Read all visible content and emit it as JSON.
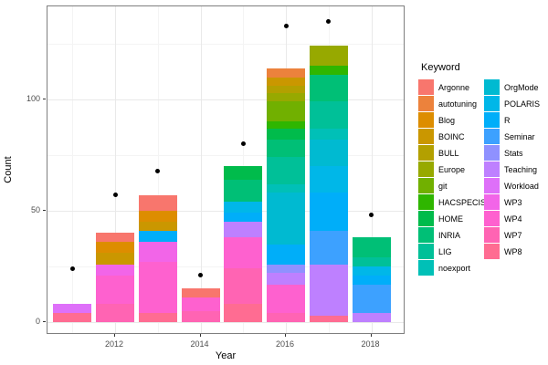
{
  "axes": {
    "x_label": "Year",
    "y_label": "Count",
    "x_ticks": [
      {
        "label": "2012",
        "value": 2012
      },
      {
        "label": "2014",
        "value": 2014
      },
      {
        "label": "2016",
        "value": 2016
      },
      {
        "label": "2018",
        "value": 2018
      }
    ],
    "y_ticks": [
      {
        "label": "0",
        "value": 0
      },
      {
        "label": "50",
        "value": 50
      },
      {
        "label": "100",
        "value": 100
      }
    ]
  },
  "legend": {
    "title": "Keyword",
    "items": [
      {
        "label": "Argonne",
        "color": "#F8766D"
      },
      {
        "label": "autotuning",
        "color": "#EC823C"
      },
      {
        "label": "Blog",
        "color": "#DD8D00"
      },
      {
        "label": "BOINC",
        "color": "#CA9700"
      },
      {
        "label": "BULL",
        "color": "#B3A000"
      },
      {
        "label": "Europe",
        "color": "#97A900"
      },
      {
        "label": "git",
        "color": "#71B000"
      },
      {
        "label": "HACSPECIS",
        "color": "#2FB600"
      },
      {
        "label": "HOME",
        "color": "#00BB4B"
      },
      {
        "label": "INRIA",
        "color": "#00BF76"
      },
      {
        "label": "LIG",
        "color": "#00C098"
      },
      {
        "label": "noexport",
        "color": "#00C0B7"
      },
      {
        "label": "OrgMode",
        "color": "#00BAD1"
      },
      {
        "label": "POLARIS",
        "color": "#00B7E8"
      },
      {
        "label": "R",
        "color": "#00AEF9"
      },
      {
        "label": "Seminar",
        "color": "#3DA1FF"
      },
      {
        "label": "Stats",
        "color": "#8F91FF"
      },
      {
        "label": "Teaching",
        "color": "#BE80FF"
      },
      {
        "label": "Workload",
        "color": "#DE70F9"
      },
      {
        "label": "WP3",
        "color": "#F265E8"
      },
      {
        "label": "WP4",
        "color": "#FE61CF"
      },
      {
        "label": "WP7",
        "color": "#FF64B3"
      },
      {
        "label": "WP8",
        "color": "#FF6C92"
      }
    ],
    "column_split": 12
  },
  "chart_data": {
    "type": "bar",
    "subtype": "stacked-bars-with-points",
    "title": "",
    "xlabel": "Year",
    "ylabel": "Count",
    "x_range": [
      2010.4,
      2018.6
    ],
    "ylim": [
      0,
      140
    ],
    "grid": {
      "y_major": [
        0,
        50,
        100
      ],
      "y_minor": [
        25,
        75,
        125
      ],
      "x_major": [
        2012,
        2014,
        2016,
        2018
      ],
      "x_minor": [
        2011,
        2013,
        2015,
        2017
      ]
    },
    "bars": [
      {
        "year": 2011,
        "total": 8,
        "segments": [
          {
            "keyword": "WP8",
            "value": 4
          },
          {
            "keyword": "Workload",
            "value": 4
          }
        ]
      },
      {
        "year": 2012,
        "total": 40,
        "segments": [
          {
            "keyword": "WP7",
            "value": 8
          },
          {
            "keyword": "WP4",
            "value": 13
          },
          {
            "keyword": "WP3",
            "value": 5
          },
          {
            "keyword": "BOINC",
            "value": 5
          },
          {
            "keyword": "Blog",
            "value": 5
          },
          {
            "keyword": "Argonne",
            "value": 4
          }
        ]
      },
      {
        "year": 2013,
        "total": 57,
        "segments": [
          {
            "keyword": "WP8",
            "value": 4
          },
          {
            "keyword": "WP4",
            "value": 23
          },
          {
            "keyword": "WP3",
            "value": 9
          },
          {
            "keyword": "R",
            "value": 5
          },
          {
            "keyword": "BOINC",
            "value": 4
          },
          {
            "keyword": "Blog",
            "value": 5
          },
          {
            "keyword": "Argonne",
            "value": 7
          }
        ]
      },
      {
        "year": 2014,
        "total": 15,
        "segments": [
          {
            "keyword": "WP7",
            "value": 5
          },
          {
            "keyword": "WP4",
            "value": 6
          },
          {
            "keyword": "Argonne",
            "value": 4
          }
        ]
      },
      {
        "year": 2015,
        "total": 70,
        "segments": [
          {
            "keyword": "WP8",
            "value": 8
          },
          {
            "keyword": "WP7",
            "value": 16
          },
          {
            "keyword": "WP4",
            "value": 14
          },
          {
            "keyword": "Teaching",
            "value": 7
          },
          {
            "keyword": "R",
            "value": 4
          },
          {
            "keyword": "POLARIS",
            "value": 5
          },
          {
            "keyword": "INRIA",
            "value": 10
          },
          {
            "keyword": "HOME",
            "value": 6
          }
        ]
      },
      {
        "year": 2016,
        "total": 114,
        "segments": [
          {
            "keyword": "WP7",
            "value": 4
          },
          {
            "keyword": "WP4",
            "value": 13
          },
          {
            "keyword": "Teaching",
            "value": 5
          },
          {
            "keyword": "Stats",
            "value": 4
          },
          {
            "keyword": "R",
            "value": 9
          },
          {
            "keyword": "OrgMode",
            "value": 23
          },
          {
            "keyword": "noexport",
            "value": 4
          },
          {
            "keyword": "LIG",
            "value": 12
          },
          {
            "keyword": "INRIA",
            "value": 8
          },
          {
            "keyword": "HOME",
            "value": 5
          },
          {
            "keyword": "HACSPECIS",
            "value": 3
          },
          {
            "keyword": "git",
            "value": 9
          },
          {
            "keyword": "Europe",
            "value": 4
          },
          {
            "keyword": "BULL",
            "value": 3
          },
          {
            "keyword": "BOINC",
            "value": 4
          },
          {
            "keyword": "autotuning",
            "value": 4
          }
        ]
      },
      {
        "year": 2017,
        "total": 124,
        "segments": [
          {
            "keyword": "WP8",
            "value": 3
          },
          {
            "keyword": "Teaching",
            "value": 23
          },
          {
            "keyword": "Seminar",
            "value": 15
          },
          {
            "keyword": "R",
            "value": 17
          },
          {
            "keyword": "POLARIS",
            "value": 12
          },
          {
            "keyword": "OrgMode",
            "value": 12
          },
          {
            "keyword": "noexport",
            "value": 5
          },
          {
            "keyword": "LIG",
            "value": 12
          },
          {
            "keyword": "INRIA",
            "value": 12
          },
          {
            "keyword": "HACSPECIS",
            "value": 4
          },
          {
            "keyword": "Europe",
            "value": 9
          }
        ]
      },
      {
        "year": 2018,
        "total": 38,
        "segments": [
          {
            "keyword": "Teaching",
            "value": 4
          },
          {
            "keyword": "Seminar",
            "value": 13
          },
          {
            "keyword": "R",
            "value": 4
          },
          {
            "keyword": "POLARIS",
            "value": 4
          },
          {
            "keyword": "LIG",
            "value": 4
          },
          {
            "keyword": "INRIA",
            "value": 9
          }
        ]
      }
    ],
    "points": [
      {
        "year": 2011,
        "value": 24
      },
      {
        "year": 2012,
        "value": 57
      },
      {
        "year": 2013,
        "value": 68
      },
      {
        "year": 2014,
        "value": 21
      },
      {
        "year": 2015,
        "value": 80
      },
      {
        "year": 2016,
        "value": 133
      },
      {
        "year": 2017,
        "value": 135
      },
      {
        "year": 2018,
        "value": 48
      }
    ]
  }
}
